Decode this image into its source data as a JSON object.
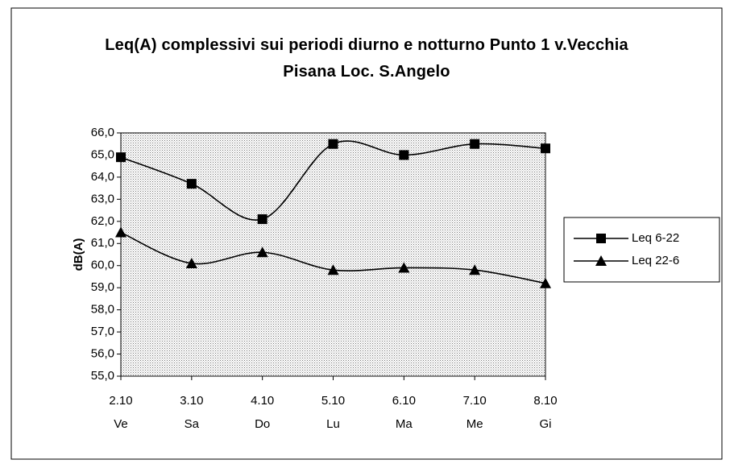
{
  "chart_data": {
    "type": "line",
    "title": "Leq(A) complessivi sui periodi diurno e notturno Punto 1 v.Vecchia Pisana Loc. S.Angelo",
    "y_label": "dB(A)",
    "categories": [
      "2.10",
      "3.10",
      "4.10",
      "5.10",
      "6.10",
      "7.10",
      "8.10"
    ],
    "weekdays": [
      "Ve",
      "Sa",
      "Do",
      "Lu",
      "Ma",
      "Me",
      "Gi"
    ],
    "series": [
      {
        "name": "Leq 6-22",
        "color": "#000000",
        "marker": "square",
        "values": [
          64.9,
          63.7,
          62.1,
          65.5,
          65.0,
          65.5,
          65.3
        ]
      },
      {
        "name": "Leq 22-6",
        "color": "#000000",
        "marker": "triangle",
        "values": [
          61.5,
          60.1,
          60.6,
          59.8,
          59.9,
          59.8,
          59.2
        ]
      }
    ],
    "ylim": [
      55,
      66
    ],
    "yticks": [
      {
        "value": 55,
        "label": "55,0"
      },
      {
        "value": 56,
        "label": "56,0"
      },
      {
        "value": 57,
        "label": "57,0"
      },
      {
        "value": 58,
        "label": "58,0"
      },
      {
        "value": 59,
        "label": "59,0"
      },
      {
        "value": 60,
        "label": "60,0"
      },
      {
        "value": 61,
        "label": "61,0"
      },
      {
        "value": 62,
        "label": "62,0"
      },
      {
        "value": 63,
        "label": "63,0"
      },
      {
        "value": 64,
        "label": "64,0"
      },
      {
        "value": 65,
        "label": "65,0"
      },
      {
        "value": 66,
        "label": "66,0"
      }
    ],
    "smooth": true,
    "legend": "right"
  }
}
